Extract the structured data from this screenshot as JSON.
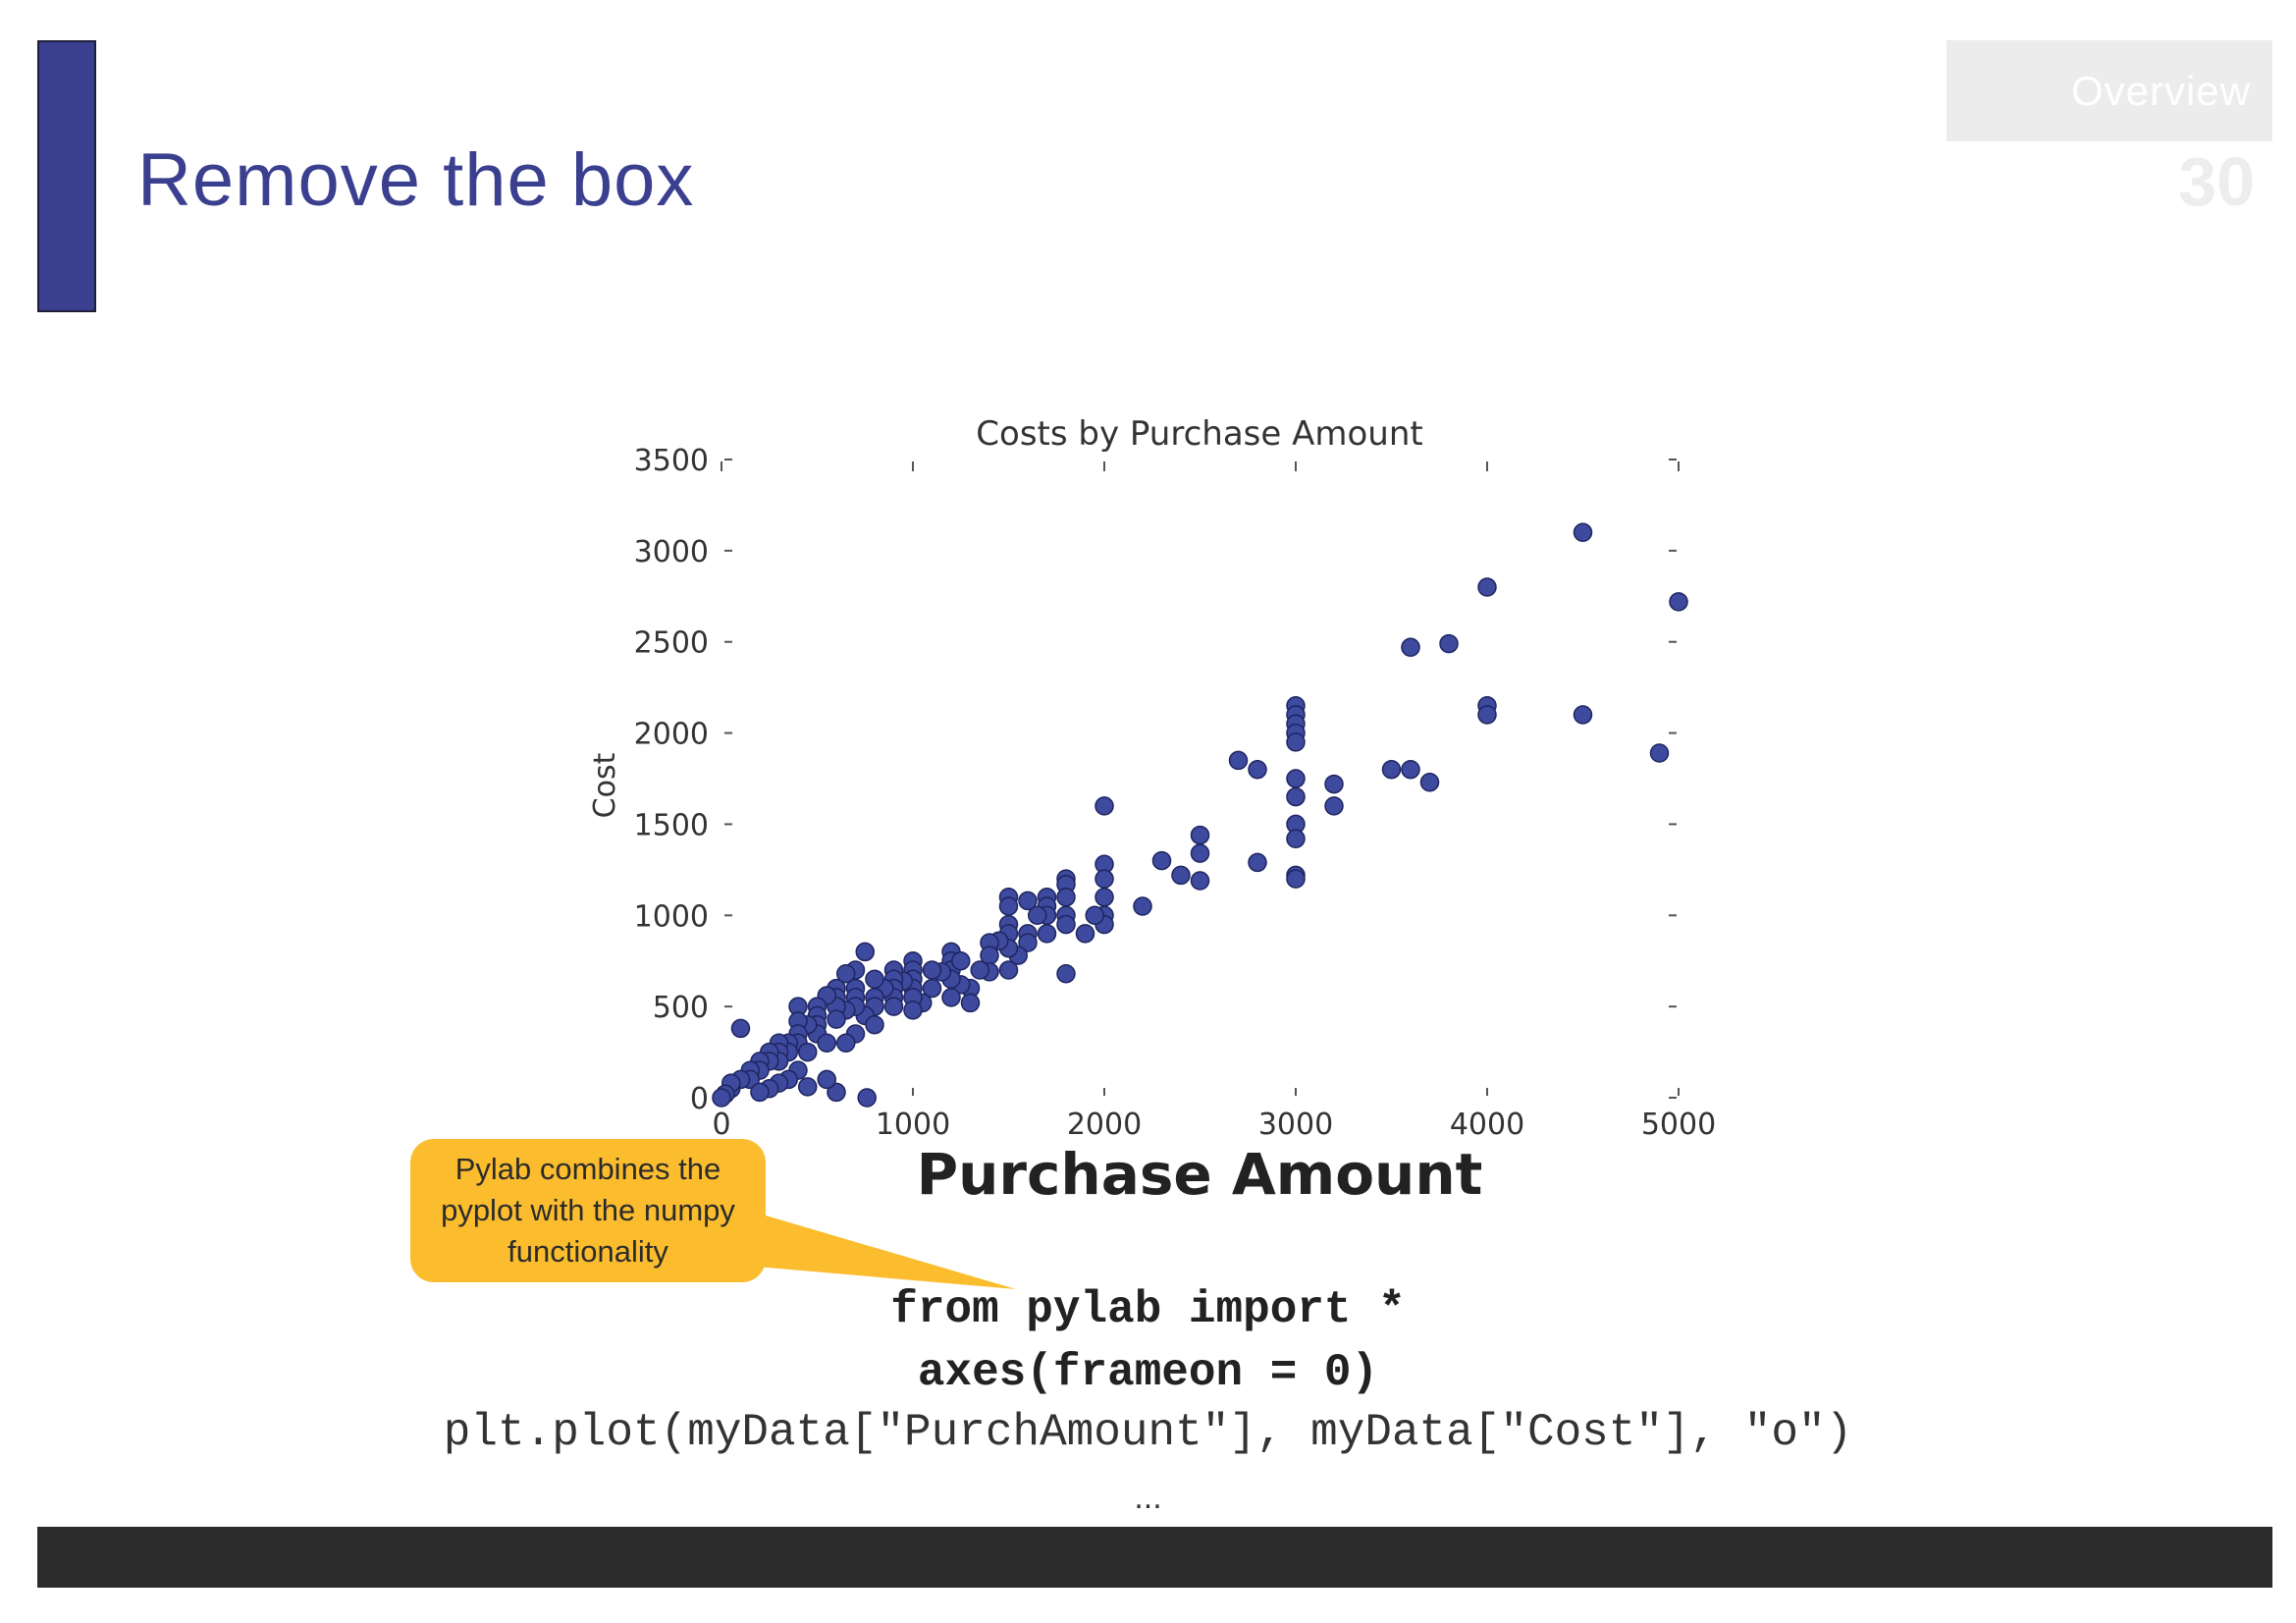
{
  "slide": {
    "title": "Remove the box",
    "section_label": "Overview",
    "page_number": "30"
  },
  "callout": {
    "text": "Pylab combines the pyplot with the numpy functionality"
  },
  "code": {
    "line1": "from pylab import *",
    "line2": "axes(frameon = 0)",
    "line3": "plt.plot(myData[\"PurchAmount\"], myData[\"Cost\"], \"o\")",
    "ellipsis": "..."
  },
  "colors": {
    "accent": "#3a3f8f",
    "marker": "#3d4a9e",
    "callout": "#fbbd2e",
    "footer": "#2b2b2b"
  },
  "chart_data": {
    "type": "scatter",
    "title": "Costs by Purchase Amount",
    "xlabel": "Purchase Amount",
    "ylabel": "Cost",
    "xlim": [
      0,
      5000
    ],
    "ylim": [
      0,
      3500
    ],
    "xticks": [
      "0",
      "1000",
      "2000",
      "3000",
      "4000",
      "5000"
    ],
    "yticks": [
      "0",
      "500",
      "1000",
      "1500",
      "2000",
      "2500",
      "3000",
      "3500"
    ],
    "frame": false,
    "grid": false,
    "points": [
      [
        4500,
        3100
      ],
      [
        5000,
        2720
      ],
      [
        4000,
        2800
      ],
      [
        3600,
        2470
      ],
      [
        3800,
        2490
      ],
      [
        4000,
        2150
      ],
      [
        4000,
        2100
      ],
      [
        4500,
        2100
      ],
      [
        4900,
        1890
      ],
      [
        3000,
        2150
      ],
      [
        3000,
        2100
      ],
      [
        3000,
        2050
      ],
      [
        3000,
        2000
      ],
      [
        3000,
        1950
      ],
      [
        3000,
        1750
      ],
      [
        3000,
        1650
      ],
      [
        3000,
        1500
      ],
      [
        3000,
        1420
      ],
      [
        3000,
        1220
      ],
      [
        3000,
        1200
      ],
      [
        3200,
        1720
      ],
      [
        3200,
        1600
      ],
      [
        3500,
        1800
      ],
      [
        3600,
        1800
      ],
      [
        3700,
        1730
      ],
      [
        2700,
        1850
      ],
      [
        2800,
        1800
      ],
      [
        2800,
        1290
      ],
      [
        2500,
        1440
      ],
      [
        2500,
        1340
      ],
      [
        2500,
        1190
      ],
      [
        2400,
        1220
      ],
      [
        2300,
        1300
      ],
      [
        2200,
        1050
      ],
      [
        2000,
        1600
      ],
      [
        2000,
        1280
      ],
      [
        2000,
        1200
      ],
      [
        2000,
        1100
      ],
      [
        2000,
        1000
      ],
      [
        2000,
        950
      ],
      [
        1950,
        1000
      ],
      [
        1900,
        900
      ],
      [
        1800,
        1200
      ],
      [
        1800,
        1170
      ],
      [
        1800,
        1100
      ],
      [
        1800,
        1000
      ],
      [
        1800,
        950
      ],
      [
        1800,
        680
      ],
      [
        1700,
        1100
      ],
      [
        1700,
        1050
      ],
      [
        1700,
        1000
      ],
      [
        1700,
        900
      ],
      [
        1650,
        1000
      ],
      [
        1600,
        1080
      ],
      [
        1600,
        900
      ],
      [
        1600,
        850
      ],
      [
        1550,
        780
      ],
      [
        1500,
        1100
      ],
      [
        1500,
        1050
      ],
      [
        1500,
        950
      ],
      [
        1500,
        900
      ],
      [
        1500,
        820
      ],
      [
        1500,
        700
      ],
      [
        1450,
        860
      ],
      [
        1400,
        850
      ],
      [
        1400,
        780
      ],
      [
        1400,
        690
      ],
      [
        1350,
        700
      ],
      [
        1300,
        600
      ],
      [
        1300,
        520
      ],
      [
        1250,
        620
      ],
      [
        1200,
        800
      ],
      [
        1200,
        750
      ],
      [
        1200,
        700
      ],
      [
        1200,
        650
      ],
      [
        1200,
        550
      ],
      [
        1150,
        690
      ],
      [
        1100,
        700
      ],
      [
        1100,
        600
      ],
      [
        1050,
        520
      ],
      [
        1000,
        750
      ],
      [
        1000,
        700
      ],
      [
        1000,
        650
      ],
      [
        1000,
        600
      ],
      [
        1000,
        550
      ],
      [
        1000,
        480
      ],
      [
        950,
        640
      ],
      [
        900,
        700
      ],
      [
        900,
        650
      ],
      [
        900,
        600
      ],
      [
        900,
        550
      ],
      [
        900,
        500
      ],
      [
        850,
        600
      ],
      [
        800,
        650
      ],
      [
        800,
        550
      ],
      [
        800,
        500
      ],
      [
        750,
        800
      ],
      [
        750,
        450
      ],
      [
        700,
        700
      ],
      [
        700,
        600
      ],
      [
        700,
        550
      ],
      [
        700,
        500
      ],
      [
        650,
        680
      ],
      [
        650,
        480
      ],
      [
        600,
        600
      ],
      [
        600,
        550
      ],
      [
        600,
        500
      ],
      [
        600,
        430
      ],
      [
        550,
        560
      ],
      [
        500,
        500
      ],
      [
        500,
        450
      ],
      [
        500,
        400
      ],
      [
        500,
        350
      ],
      [
        450,
        400
      ],
      [
        400,
        500
      ],
      [
        400,
        420
      ],
      [
        400,
        350
      ],
      [
        400,
        300
      ],
      [
        350,
        300
      ],
      [
        350,
        250
      ],
      [
        300,
        300
      ],
      [
        300,
        250
      ],
      [
        300,
        200
      ],
      [
        250,
        250
      ],
      [
        250,
        200
      ],
      [
        200,
        200
      ],
      [
        200,
        150
      ],
      [
        150,
        150
      ],
      [
        150,
        100
      ],
      [
        100,
        100
      ],
      [
        100,
        380
      ],
      [
        50,
        50
      ],
      [
        50,
        80
      ],
      [
        20,
        20
      ],
      [
        0,
        0
      ],
      [
        800,
        400
      ],
      [
        700,
        350
      ],
      [
        650,
        300
      ],
      [
        550,
        300
      ],
      [
        450,
        250
      ],
      [
        400,
        150
      ],
      [
        350,
        100
      ],
      [
        300,
        80
      ],
      [
        250,
        50
      ],
      [
        200,
        30
      ],
      [
        760,
        0
      ],
      [
        600,
        30
      ],
      [
        550,
        100
      ],
      [
        450,
        60
      ],
      [
        1250,
        750
      ]
    ]
  }
}
